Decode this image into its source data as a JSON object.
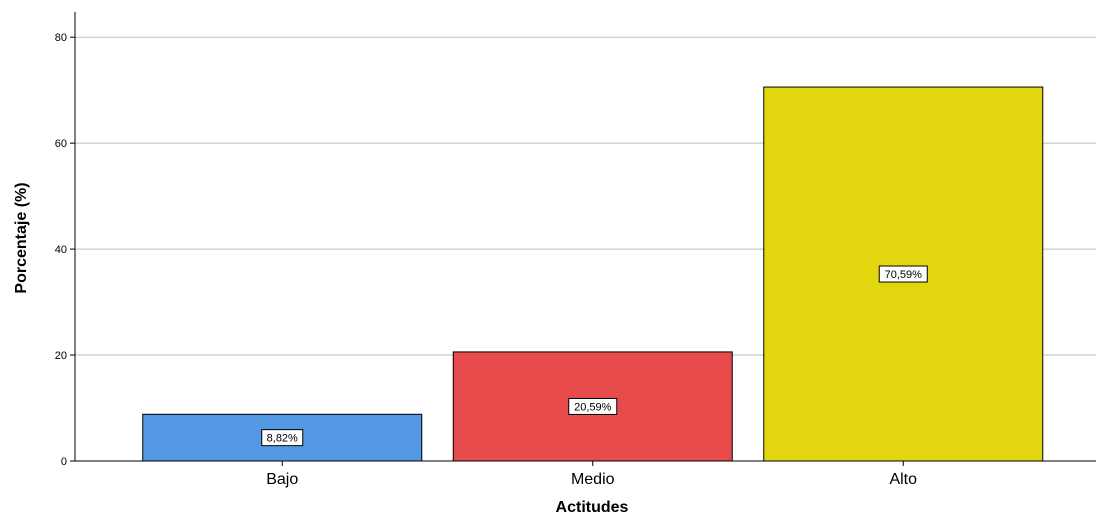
{
  "chart_data": {
    "type": "bar",
    "categories": [
      "Bajo",
      "Medio",
      "Alto"
    ],
    "values": [
      8.82,
      20.59,
      70.59
    ],
    "data_labels": [
      "8,82%",
      "20,59%",
      "70,59%"
    ],
    "colors": [
      "#5497e3",
      "#e84b4b",
      "#e2d70f"
    ],
    "xlabel": "Actitudes",
    "ylabel": "Porcentaje (%)",
    "ylim": [
      0,
      84
    ],
    "yticks": [
      0,
      20,
      40,
      60,
      80
    ],
    "grid": true
  }
}
